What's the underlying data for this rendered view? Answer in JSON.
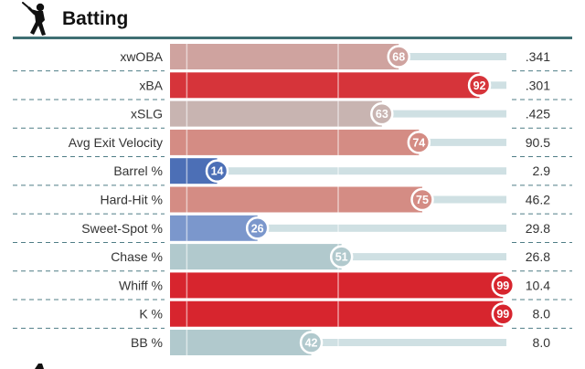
{
  "header": {
    "title": "Batting",
    "icon": "batter-icon",
    "rule_color": "#3f6f73"
  },
  "footer": {
    "icon": "pitcher-icon"
  },
  "colors": {
    "track": "#cfe0e3",
    "text": "#333333",
    "divider": "#4f7d86",
    "badge_border": "#ffffff"
  },
  "chart_data": {
    "type": "bar",
    "orientation": "horizontal",
    "title": "",
    "xlim": [
      0,
      100
    ],
    "grid": true,
    "categories": [
      "xwOBA",
      "xBA",
      "xSLG",
      "Avg Exit Velocity",
      "Barrel %",
      "Hard-Hit %",
      "Sweet-Spot %",
      "Chase %",
      "Whiff %",
      "K %",
      "BB %"
    ],
    "series": [
      {
        "values": [
          68,
          92,
          63,
          74,
          14,
          75,
          26,
          51,
          99,
          99,
          42
        ]
      }
    ],
    "bar_colors": [
      "#cfa39f",
      "#d6343a",
      "#c8b4b1",
      "#d48c84",
      "#4c6fb6",
      "#d48c84",
      "#7b97cc",
      "#b1c9cd",
      "#d7252e",
      "#d7252e",
      "#b1c9cd"
    ],
    "stat_values": [
      ".341",
      ".301",
      ".425",
      "90.5",
      "2.9",
      "46.2",
      "29.8",
      "26.8",
      "10.4",
      "8.0",
      "8.0"
    ]
  }
}
